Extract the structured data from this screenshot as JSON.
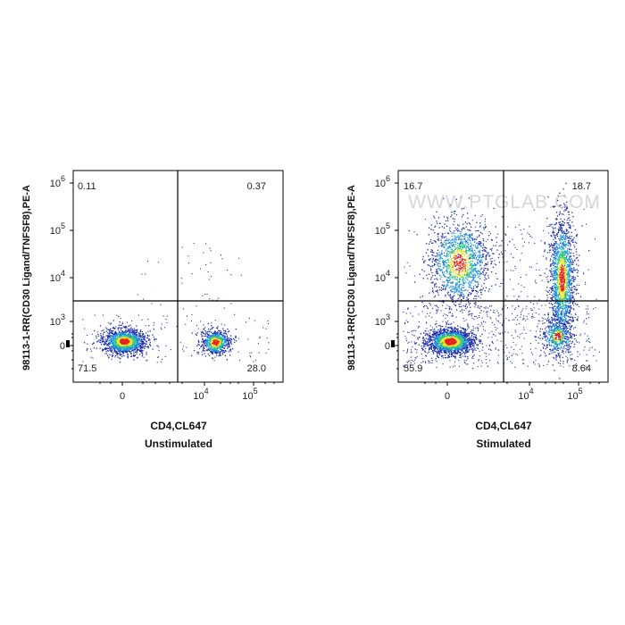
{
  "chart_data": [
    {
      "type": "scatter",
      "subtype": "flow-cytometry-density-dot-plot",
      "condition": "Unstimulated",
      "xlabel": "CD4,CL647",
      "ylabel": "98113-1-RR(CD30 Ligand/TNFSF8),PE-A",
      "x_ticks": [
        {
          "label": "0",
          "value": 0
        },
        {
          "label": "10",
          "exp": "4",
          "value": 10000
        },
        {
          "label": "10",
          "exp": "5",
          "value": 100000
        }
      ],
      "y_ticks": [
        {
          "label": "0",
          "value": 0
        },
        {
          "label": "10",
          "exp": "3",
          "value": 1000
        },
        {
          "label": "10",
          "exp": "4",
          "value": 10000
        },
        {
          "label": "10",
          "exp": "5",
          "value": 100000
        },
        {
          "label": "10",
          "exp": "6",
          "value": 1000000
        }
      ],
      "scale": "biexponential",
      "quadrants": [
        {
          "position": "top-left",
          "value": "0.11"
        },
        {
          "position": "top-right",
          "value": "0.37"
        },
        {
          "position": "bottom-left",
          "value": "71.5"
        },
        {
          "position": "bottom-right",
          "value": "28.0"
        }
      ]
    },
    {
      "type": "scatter",
      "subtype": "flow-cytometry-density-dot-plot",
      "condition": "Stimulated",
      "xlabel": "CD4,CL647",
      "ylabel": "98113-1-RR(CD30 Ligand/TNFSF8),PE-A",
      "x_ticks": [
        {
          "label": "0",
          "value": 0
        },
        {
          "label": "10",
          "exp": "4",
          "value": 10000
        },
        {
          "label": "10",
          "exp": "5",
          "value": 100000
        }
      ],
      "y_ticks": [
        {
          "label": "0",
          "value": 0
        },
        {
          "label": "10",
          "exp": "3",
          "value": 1000
        },
        {
          "label": "10",
          "exp": "4",
          "value": 10000
        },
        {
          "label": "10",
          "exp": "5",
          "value": 100000
        },
        {
          "label": "10",
          "exp": "6",
          "value": 1000000
        }
      ],
      "scale": "biexponential",
      "quadrants": [
        {
          "position": "top-left",
          "value": "16.7"
        },
        {
          "position": "top-right",
          "value": "18.7"
        },
        {
          "position": "bottom-left",
          "value": "55.9"
        },
        {
          "position": "bottom-right",
          "value": "8.64"
        }
      ]
    }
  ],
  "watermark": "WWW.PTGLAB.COM",
  "colors": {
    "density_low": "#1f2fa8",
    "density_mid_low": "#1e90e0",
    "density_mid": "#2fc48a",
    "density_mid_high": "#e9e42a",
    "density_high": "#e8241c",
    "gate_line": "#000000"
  }
}
